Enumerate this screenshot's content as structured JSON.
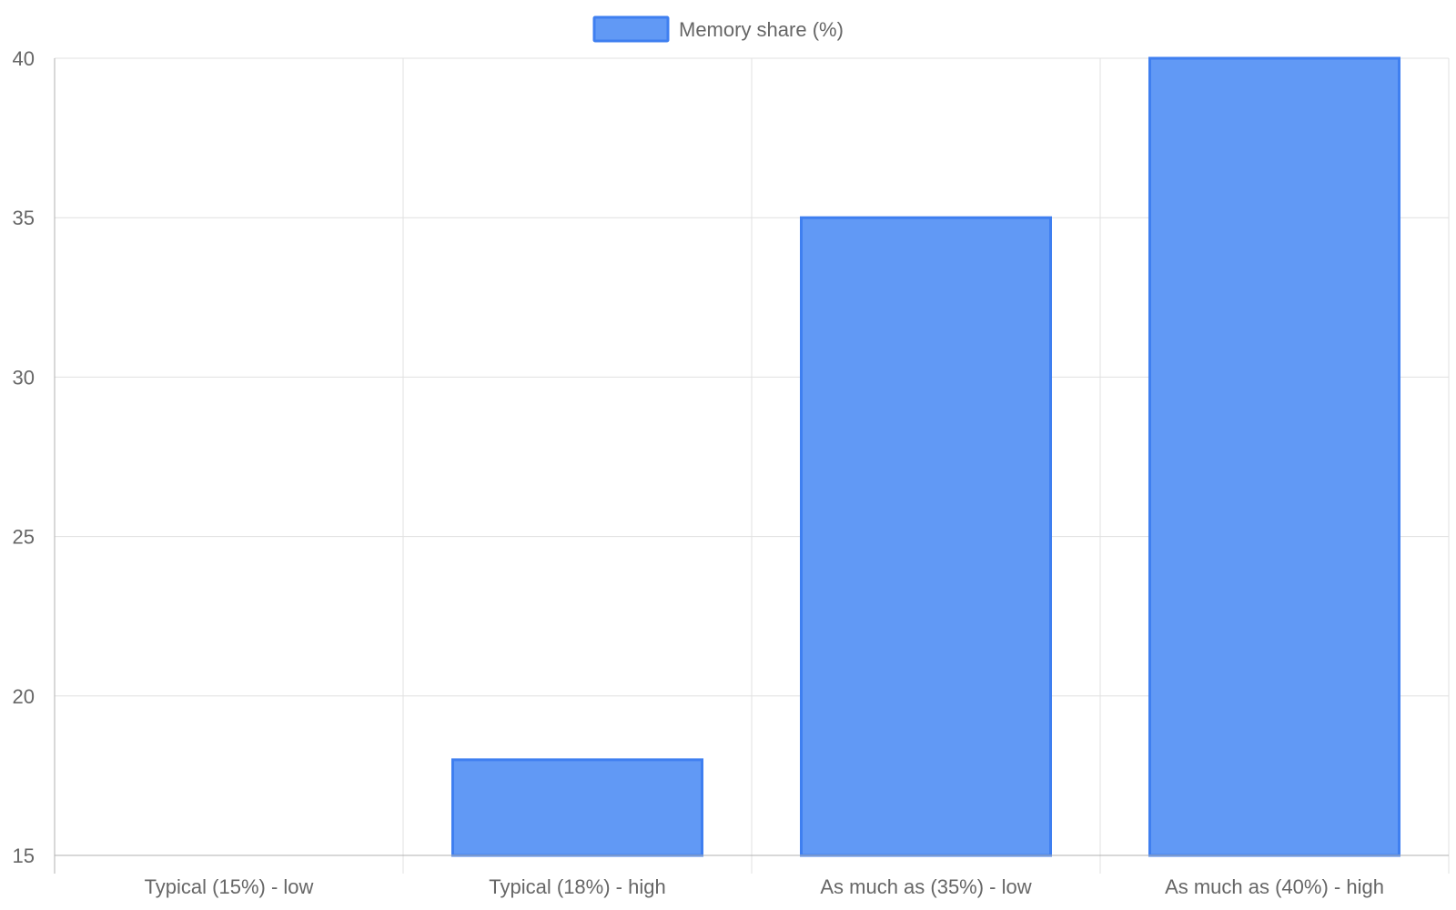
{
  "chart_data": {
    "type": "bar",
    "categories": [
      "Typical (15%) - low",
      "Typical (18%) - high",
      "As much as (35%) - low",
      "As much as (40%) - high"
    ],
    "series": [
      {
        "name": "Memory share (%)",
        "values": [
          15,
          18,
          35,
          40
        ]
      }
    ],
    "ylim": [
      15,
      40
    ],
    "yticks": [
      "15",
      "20",
      "25",
      "30",
      "35",
      "40"
    ],
    "grid": true,
    "legend_position": "top-center",
    "colors": {
      "bar_fill": "#6199f5",
      "bar_border": "#3f7ff0"
    }
  }
}
